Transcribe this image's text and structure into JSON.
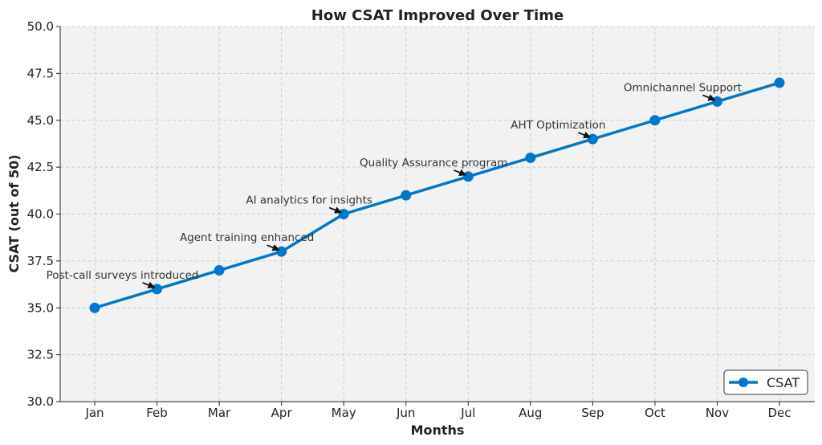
{
  "chart_data": {
    "type": "line",
    "title": "How CSAT Improved Over Time",
    "xlabel": "Months",
    "ylabel": "CSAT (out of 50)",
    "categories": [
      "Jan",
      "Feb",
      "Mar",
      "Apr",
      "May",
      "Jun",
      "Jul",
      "Aug",
      "Sep",
      "Oct",
      "Nov",
      "Dec"
    ],
    "series": [
      {
        "name": "CSAT",
        "values": [
          35,
          36,
          37,
          38,
          40,
          41,
          42,
          43,
          44,
          45,
          46,
          47
        ],
        "color": "#0077cc"
      }
    ],
    "ylim": [
      30,
      50
    ],
    "yticks": [
      "30.0",
      "32.5",
      "35.0",
      "37.5",
      "40.0",
      "42.5",
      "45.0",
      "47.5",
      "50.0"
    ],
    "grid": true,
    "legend": "bottom-right",
    "annotations": [
      {
        "month": "Feb",
        "text": "Post-call surveys introduced"
      },
      {
        "month": "Apr",
        "text": "Agent training enhanced"
      },
      {
        "month": "May",
        "text": "AI analytics for insights"
      },
      {
        "month": "Jul",
        "text": "Quality Assurance program"
      },
      {
        "month": "Sep",
        "text": "AHT Optimization"
      },
      {
        "month": "Nov",
        "text": "Omnichannel Support"
      }
    ]
  }
}
